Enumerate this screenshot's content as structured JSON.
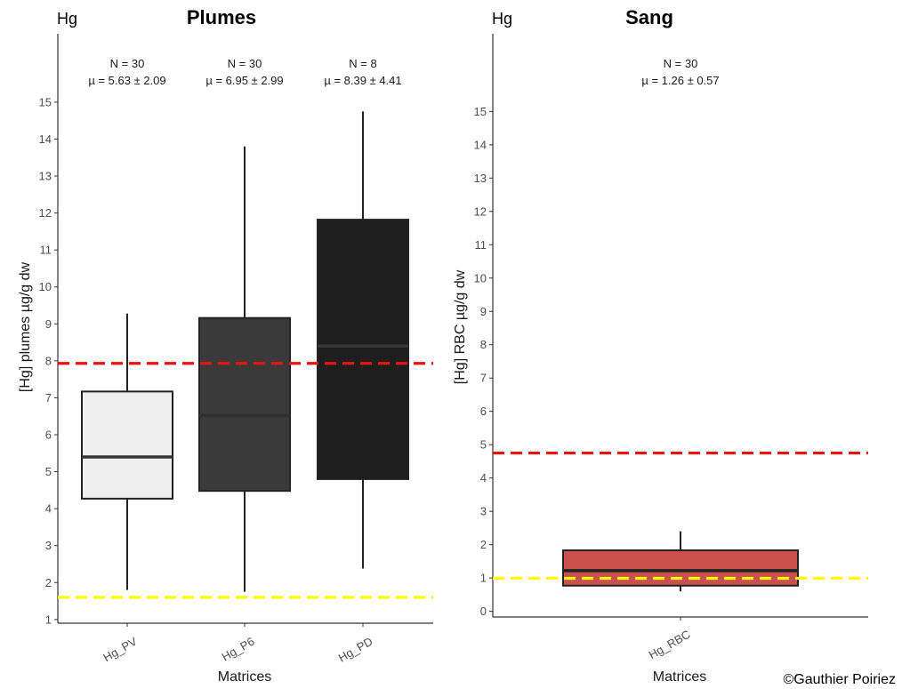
{
  "credit": "©Gauthier Poiriez",
  "styles": {
    "red_threshold_color": "#ee1111",
    "yellow_threshold_color": "#ffff00",
    "axis_color": "#333333"
  },
  "chart_data": [
    {
      "type": "box",
      "tag": "Hg",
      "title": "Plumes",
      "xlabel": "Matrices",
      "ylabel": "[Hg] plumes µg/g dw",
      "ylim": [
        0.9,
        16.85
      ],
      "yticks": [
        1,
        2,
        3,
        4,
        5,
        6,
        7,
        8,
        9,
        10,
        11,
        12,
        13,
        14,
        15
      ],
      "reference_lines": [
        {
          "y": 7.93,
          "color": "red",
          "style": "dashed"
        },
        {
          "y": 1.6,
          "color": "yellow",
          "style": "dashed"
        }
      ],
      "boxes": [
        {
          "category": "Hg_PV",
          "whisker_low": 1.8,
          "q1": 4.27,
          "median": 5.4,
          "q3": 7.17,
          "whisker_high": 9.28,
          "fill": "#efefef",
          "median_color": "#333333",
          "n_label": "N = 30",
          "mean_label": "µ = 5.63 ± 2.09"
        },
        {
          "category": "Hg_P6",
          "whisker_low": 1.75,
          "q1": 4.48,
          "median": 6.52,
          "q3": 9.16,
          "whisker_high": 13.8,
          "fill": "#3a3a3a",
          "median_color": "#2f2f2f",
          "n_label": "N = 30",
          "mean_label": "µ = 6.95 ± 2.99"
        },
        {
          "category": "Hg_PD",
          "whisker_low": 2.38,
          "q1": 4.8,
          "median": 8.4,
          "q3": 11.82,
          "whisker_high": 14.75,
          "fill": "#1e1e1e",
          "median_color": "#383838",
          "n_label": "N = 8",
          "mean_label": "µ = 8.39 ± 4.41"
        }
      ]
    },
    {
      "type": "box",
      "tag": "Hg",
      "title": "Sang",
      "xlabel": "Matrices",
      "ylabel": "[Hg] RBC µg/g dw",
      "ylim": [
        -0.17,
        17.33
      ],
      "yticks": [
        0,
        1,
        2,
        3,
        4,
        5,
        6,
        7,
        8,
        9,
        10,
        11,
        12,
        13,
        14,
        15
      ],
      "reference_lines": [
        {
          "y": 4.75,
          "color": "red",
          "style": "dashed"
        },
        {
          "y": 0.99,
          "color": "yellow",
          "style": "dashed"
        }
      ],
      "boxes": [
        {
          "category": "Hg_RBC",
          "whisker_low": 0.6,
          "q1": 0.77,
          "median": 1.22,
          "q3": 1.83,
          "whisker_high": 2.4,
          "fill": "#c9504c",
          "median_color": "#222222",
          "n_label": "N = 30",
          "mean_label": "µ = 1.26 ± 0.57"
        }
      ]
    }
  ]
}
